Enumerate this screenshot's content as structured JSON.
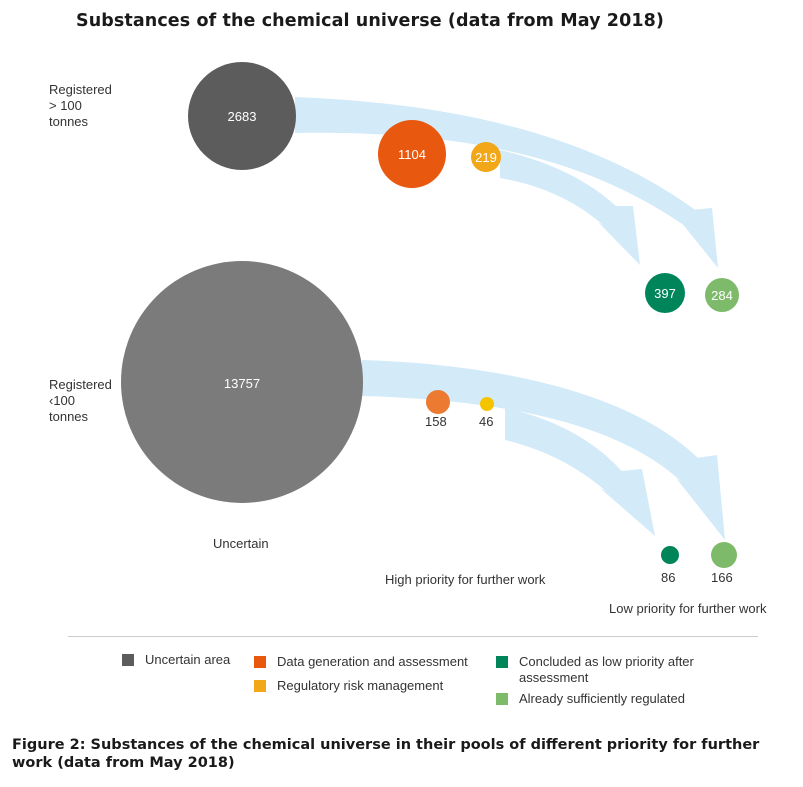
{
  "title": "Substances of the chemical universe (data from May 2018)",
  "rows": [
    {
      "label": "Registered\n> 100\ntonnes"
    },
    {
      "label": "Registered\n‹100\ntonnes"
    }
  ],
  "colors": {
    "uncertain_top": "#5c5c5c",
    "uncertain_bottom": "#7b7b7b",
    "data_generation": "#e8580f",
    "data_generation_small": "#ec7a30",
    "regulatory_risk": "#f2a719",
    "regulatory_risk_small": "#f5c400",
    "concluded_low": "#00855a",
    "already_regulated": "#7dbb6a",
    "arrow": "#d3eaf8"
  },
  "chart_data": {
    "type": "bubble",
    "groups": [
      {
        "row": "Registered > 100 tonnes",
        "values": [
          {
            "category": "Uncertain area",
            "value": 2683
          },
          {
            "category": "Data generation and assessment",
            "value": 1104
          },
          {
            "category": "Regulatory risk management",
            "value": 219
          },
          {
            "category": "Concluded as low priority after assessment",
            "value": 397
          },
          {
            "category": "Already sufficiently regulated",
            "value": 284
          }
        ]
      },
      {
        "row": "Registered ‹100 tonnes",
        "values": [
          {
            "category": "Uncertain area",
            "value": 13757
          },
          {
            "category": "Data generation and assessment",
            "value": 158
          },
          {
            "category": "Regulatory risk management",
            "value": 46
          },
          {
            "category": "Concluded as low priority after assessment",
            "value": 86
          },
          {
            "category": "Already sufficiently regulated",
            "value": 166
          }
        ]
      }
    ]
  },
  "bubble_labels": {
    "top_uncertain": "2683",
    "top_data": "1104",
    "top_regulatory": "219",
    "top_concluded": "397",
    "top_regulated": "284",
    "bottom_uncertain": "13757",
    "bottom_data": "158",
    "bottom_regulatory": "46",
    "bottom_concluded": "86",
    "bottom_regulated": "166"
  },
  "zone_labels": {
    "uncertain": "Uncertain",
    "high_priority": "High priority for further work",
    "low_priority": "Low priority for further work"
  },
  "legend": [
    {
      "label": "Uncertain area",
      "color": "#5c5c5c"
    },
    {
      "label": "Data generation and assessment",
      "color": "#e8580f"
    },
    {
      "label": "Regulatory risk management",
      "color": "#f2a719"
    },
    {
      "label": "Concluded as low priority after\nassessment",
      "color": "#00855a"
    },
    {
      "label": "Already sufficiently regulated",
      "color": "#7dbb6a"
    }
  ],
  "caption": "Figure 2: Substances of the chemical universe in their pools of different priority for further work (data from May 2018)"
}
